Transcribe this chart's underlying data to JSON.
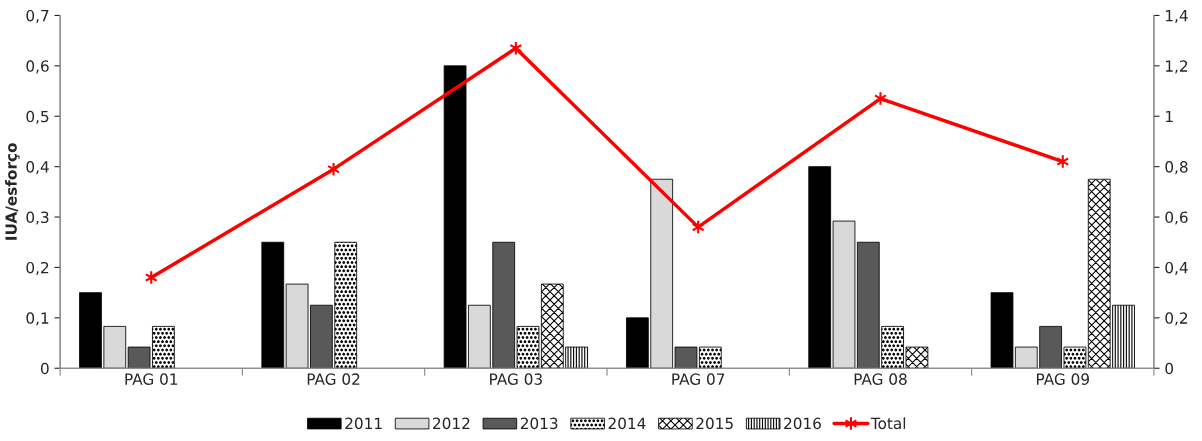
{
  "chart_data": {
    "type": "bar",
    "ylabel": "IUA/esforço",
    "categories": [
      "PAG 01",
      "PAG 02",
      "PAG 03",
      "PAG 07",
      "PAG 08",
      "PAG 09"
    ],
    "series": [
      {
        "name": "2011",
        "color": "#000000",
        "values": [
          0.15,
          0.25,
          0.6,
          0.1,
          0.4,
          0.15
        ]
      },
      {
        "name": "2012",
        "color": "#d9d9d9",
        "values": [
          0.083,
          0.167,
          0.125,
          0.375,
          0.292,
          0.042
        ]
      },
      {
        "name": "2013",
        "color": "#595959",
        "values": [
          0.042,
          0.125,
          0.25,
          0.042,
          0.25,
          0.083
        ]
      },
      {
        "name": "2014",
        "color": "#000000",
        "values": [
          0.083,
          0.25,
          0.083,
          0.042,
          0.083,
          0.042
        ]
      },
      {
        "name": "2015",
        "color": "#000000",
        "values": [
          null,
          null,
          0.167,
          null,
          0.042,
          0.375
        ]
      },
      {
        "name": "2016",
        "color": "#000000",
        "values": [
          null,
          null,
          0.042,
          null,
          null,
          0.125
        ]
      },
      {
        "name": "Total",
        "type": "line",
        "axis": "y2",
        "color": "#ff0000",
        "marker": "cross",
        "values": [
          0.36,
          0.79,
          1.27,
          0.56,
          1.07,
          0.82
        ]
      }
    ],
    "ylim": [
      0,
      0.7
    ],
    "yticks": [
      0,
      {
        "value": 0.1,
        "label": "0,1"
      },
      {
        "value": 0.2,
        "label": "0,2"
      },
      {
        "value": 0.3,
        "label": "0,3"
      },
      {
        "value": 0.4,
        "label": "0,4"
      },
      {
        "value": 0.5,
        "label": "0,5"
      },
      {
        "value": 0.6,
        "label": "0,6"
      },
      {
        "value": 0.7,
        "label": "0,7"
      }
    ],
    "y2lim": [
      0,
      1.4
    ],
    "y2ticks": [
      0,
      {
        "value": 0.2,
        "label": "0,2"
      },
      {
        "value": 0.4,
        "label": "0,4"
      },
      {
        "value": 0.6,
        "label": "0,6"
      },
      {
        "value": 0.8,
        "label": "0,8"
      },
      1,
      {
        "value": 1.2,
        "label": "1,2"
      },
      {
        "value": 1.4,
        "label": "1,4"
      }
    ],
    "grid": false,
    "legend": "bottom"
  }
}
